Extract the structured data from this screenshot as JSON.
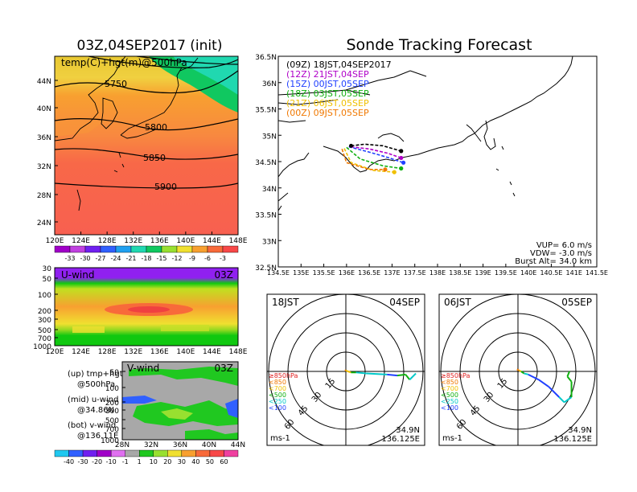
{
  "left": {
    "title": "03Z,04SEP2017 (init)",
    "map": {
      "label": "temp(C)+hgt(m)@500hPa",
      "lat_ticks": [
        "44N",
        "40N",
        "36N",
        "32N",
        "28N",
        "24N"
      ],
      "lon_ticks": [
        "120E",
        "124E",
        "128E",
        "132E",
        "136E",
        "140E",
        "144E",
        "148E"
      ],
      "contours": [
        "5750",
        "5800",
        "5850",
        "5900"
      ]
    },
    "temp_colorbar": [
      "-33",
      "-30",
      "-27",
      "-24",
      "-21",
      "-18",
      "-15",
      "-12",
      "-9",
      "-6",
      "-3"
    ],
    "uwind": {
      "label": "U-wind",
      "time": "03Z",
      "p_ticks": [
        "30",
        "50",
        "100",
        "200",
        "300",
        "500",
        "700",
        "1000"
      ],
      "lon_ticks": [
        "120E",
        "124E",
        "128E",
        "132E",
        "136E",
        "140E",
        "144E",
        "148E"
      ]
    },
    "vwind": {
      "label": "V-wind",
      "time": "03Z",
      "p_ticks": [
        "50",
        "100",
        "200",
        "300",
        "500",
        "700",
        "1000"
      ],
      "lat_ticks": [
        "28N",
        "32N",
        "36N",
        "40N",
        "44N"
      ]
    },
    "wind_colorbar": [
      "-40",
      "-30",
      "-20",
      "-10",
      "-1",
      "1",
      "10",
      "20",
      "30",
      "40",
      "50",
      "60"
    ],
    "legend": [
      {
        "a": "(up) tmp+hgt",
        "b": "@500hPa"
      },
      {
        "a": "(mid) u-wind",
        "b": "@34.86N"
      },
      {
        "a": "(bot) v-wind",
        "b": "@136.11E"
      }
    ]
  },
  "right": {
    "title": "Sonde Tracking Forecast",
    "runs": [
      {
        "label": "(09Z)  18JST,04SEP2017",
        "color": "#000000"
      },
      {
        "label": "(12Z)  21JST,04SEP",
        "color": "#b000c8"
      },
      {
        "label": "(15Z)  00JST,05SEP",
        "color": "#2040ff"
      },
      {
        "label": "(18Z)  03JST,05SEP",
        "color": "#10b010"
      },
      {
        "label": "(21Z)  06JST,05SEP",
        "color": "#f0c000"
      },
      {
        "label": "(00Z)  09JST,05SEP",
        "color": "#f07800"
      }
    ],
    "lat_ticks": [
      "36.5N",
      "36N",
      "35.5N",
      "35N",
      "34.5N",
      "34N",
      "33.5N",
      "33N",
      "32.5N"
    ],
    "lon_ticks": [
      "134.5E",
      "135E",
      "135.5E",
      "136E",
      "136.5E",
      "137E",
      "137.5E",
      "138E",
      "138.5E",
      "139E",
      "139.5E",
      "140E",
      "140.5E",
      "141E",
      "141.5E"
    ],
    "params": [
      "VUP=  6.0  m/s",
      "VDW= -3.0  m/s",
      "Burst Alt=  34.0  km"
    ]
  },
  "hodo1": {
    "time": "18JST",
    "date": "04SEP",
    "rings": [
      "15",
      "30",
      "45",
      "60"
    ],
    "levels": [
      {
        "label": "≥850hPa",
        "color": "#e02020"
      },
      {
        "label": "<850",
        "color": "#f07800"
      },
      {
        "label": "<700",
        "color": "#f0c000"
      },
      {
        "label": "<500",
        "color": "#10b010"
      },
      {
        "label": "<250",
        "color": "#00c8c8"
      },
      {
        "label": "<100",
        "color": "#2040ff"
      }
    ],
    "unit": "ms-1",
    "loc1": "34.9N",
    "loc2": "136.125E"
  },
  "hodo2": {
    "time": "06JST",
    "date": "05SEP",
    "rings": [
      "15",
      "30",
      "45",
      "60"
    ],
    "levels": [
      {
        "label": "≥850hPa",
        "color": "#e02020"
      },
      {
        "label": "<850",
        "color": "#f07800"
      },
      {
        "label": "<700",
        "color": "#f0c000"
      },
      {
        "label": "<500",
        "color": "#10b010"
      },
      {
        "label": "<250",
        "color": "#00c8c8"
      },
      {
        "label": "<100",
        "color": "#2040ff"
      }
    ],
    "unit": "ms-1",
    "loc1": "34.9N",
    "loc2": "136.125E"
  },
  "chart_data": [
    {
      "type": "line",
      "title": "Sonde Tracking Forecast",
      "xlim": [
        134.5,
        141.5
      ],
      "ylim": [
        32.5,
        36.5
      ],
      "launch": {
        "lon": 136.1,
        "lat": 34.8
      },
      "series": [
        {
          "name": "(09Z) 18JST,04SEP2017",
          "lon": [
            136.1,
            136.4,
            136.8,
            137.2
          ],
          "lat": [
            34.8,
            34.83,
            34.8,
            34.7
          ]
        },
        {
          "name": "(12Z) 21JST,04SEP",
          "lon": [
            136.1,
            136.5,
            136.9,
            137.2
          ],
          "lat": [
            34.78,
            34.74,
            34.66,
            34.57
          ]
        },
        {
          "name": "(15Z) 00JST,05SEP",
          "lon": [
            136.05,
            136.5,
            136.9,
            137.25
          ],
          "lat": [
            34.78,
            34.68,
            34.58,
            34.48
          ]
        },
        {
          "name": "(18Z) 03JST,05SEP",
          "lon": [
            136.0,
            136.3,
            136.8,
            137.2
          ],
          "lat": [
            34.77,
            34.55,
            34.42,
            34.37
          ]
        },
        {
          "name": "(21Z) 06JST,05SEP",
          "lon": [
            135.95,
            136.1,
            136.6,
            137.05
          ],
          "lat": [
            34.75,
            34.48,
            34.33,
            34.3
          ]
        },
        {
          "name": "(00Z) 09JST,05SEP",
          "lon": [
            135.9,
            136.0,
            136.5,
            136.85
          ],
          "lat": [
            34.74,
            34.48,
            34.35,
            34.35
          ]
        }
      ]
    },
    {
      "type": "scatter",
      "title": "18JST 04SEP hodograph",
      "levels": [
        "≥850hPa",
        "<850",
        "<700",
        "<500",
        "<250",
        "<100"
      ],
      "u": [
        -1,
        0,
        2,
        5,
        10,
        20,
        40,
        50,
        58,
        62,
        68
      ],
      "v": [
        1,
        1,
        0,
        -1,
        -1,
        -2,
        -3,
        -4,
        -3,
        -8,
        -2
      ],
      "level_of_point": [
        "≥850hPa",
        "<850",
        "<700",
        "<700",
        "<500",
        "<250",
        "<250",
        "<100",
        "<500",
        "<500",
        "<250"
      ]
    },
    {
      "type": "scatter",
      "title": "06JST 05SEP hodograph",
      "levels": [
        "≥850hPa",
        "<850",
        "<700",
        "<500",
        "<250",
        "<100"
      ],
      "u": [
        -1,
        1,
        3,
        6,
        10,
        20,
        30,
        40,
        45,
        52,
        52,
        48,
        50
      ],
      "v": [
        2,
        1,
        0,
        -2,
        -3,
        -8,
        -15,
        -25,
        -30,
        -25,
        -10,
        -5,
        0
      ],
      "level_of_point": [
        "≥850hPa",
        "<850",
        "<700",
        "<500",
        "<250",
        "<100",
        "<100",
        "<100",
        "<250",
        "<250",
        "<500",
        "<500",
        "<500"
      ]
    }
  ]
}
